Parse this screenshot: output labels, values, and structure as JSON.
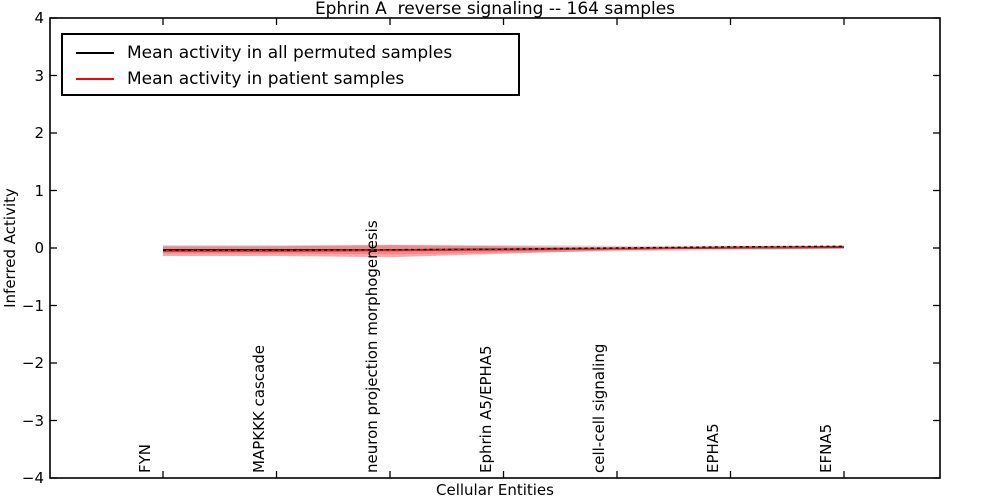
{
  "title": "Ephrin A  reverse signaling -- 164 samples",
  "legend": {
    "entries": [
      {
        "label": "Mean activity in all permuted samples",
        "color": "#000000"
      },
      {
        "label": "Mean activity in patient samples",
        "color": "#ff0000"
      }
    ]
  },
  "chart_data": {
    "type": "line",
    "title": "Ephrin A  reverse signaling -- 164 samples",
    "xlabel": "Cellular Entities",
    "ylabel": "Inferred Activity",
    "ylim": [
      -4,
      4
    ],
    "yticks": [
      4,
      3,
      2,
      1,
      0,
      -1,
      -2,
      -3,
      -4
    ],
    "grid": false,
    "legend_position": "upper left",
    "categories": [
      "FYN",
      "MAPKKK cascade",
      "neuron projection morphogenesis",
      "Ephrin A5/EPHA5",
      "cell-cell signaling",
      "EPHA5",
      "EFNA5"
    ],
    "series": [
      {
        "name": "Mean activity in all permuted samples",
        "type": "line",
        "color": "#000000",
        "values": [
          -0.03,
          -0.03,
          -0.03,
          -0.02,
          -0.01,
          0.0,
          0.01
        ]
      },
      {
        "name": "Mean activity in patient samples",
        "type": "line",
        "color": "#e62020",
        "values": [
          -0.05,
          -0.05,
          -0.04,
          -0.03,
          -0.01,
          0.01,
          0.02
        ]
      },
      {
        "name": "permuted samples spread band",
        "type": "band",
        "color": "rgba(128,128,128,0.30)",
        "upper": [
          0.05,
          0.05,
          0.06,
          0.05,
          0.04,
          0.04,
          0.04
        ],
        "lower": [
          -0.1,
          -0.1,
          -0.11,
          -0.08,
          -0.06,
          -0.04,
          -0.02
        ]
      },
      {
        "name": "patient samples spread band",
        "type": "band",
        "color": "rgba(255,0,0,0.35)",
        "upper": [
          0.03,
          0.03,
          0.05,
          0.03,
          0.01,
          0.02,
          0.03
        ],
        "lower": [
          -0.14,
          -0.14,
          -0.16,
          -0.1,
          -0.04,
          -0.01,
          0.0
        ]
      }
    ]
  }
}
